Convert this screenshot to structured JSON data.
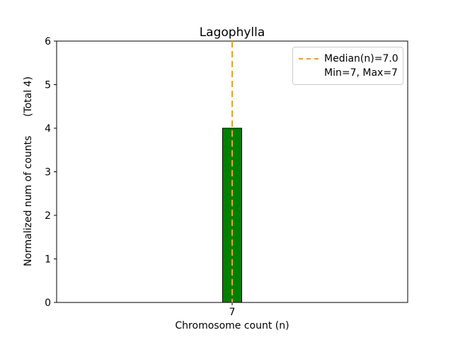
{
  "chart_data": {
    "type": "bar",
    "title": "Lagophylla",
    "xlabel": "Chromosome count (n)",
    "ylabel": "Normalized num of counts      (Total 4)",
    "categories": [
      "7"
    ],
    "values": [
      4
    ],
    "ylim": [
      0,
      6
    ],
    "yticks": [
      0,
      1,
      2,
      3,
      4,
      5,
      6
    ],
    "grid": false,
    "bar_color": "#008000",
    "bar_edge_color": "#000000",
    "median_line": {
      "x_category": "7",
      "value_label": "7.0",
      "style": "dashed",
      "color": "#eaa221"
    },
    "legend": {
      "position": "top-right",
      "entries": [
        {
          "label": "Median(n)=7.0",
          "handle": "dashed-line",
          "color": "#eaa221"
        },
        {
          "label": "Min=7, Max=7",
          "handle": "none"
        }
      ]
    }
  }
}
